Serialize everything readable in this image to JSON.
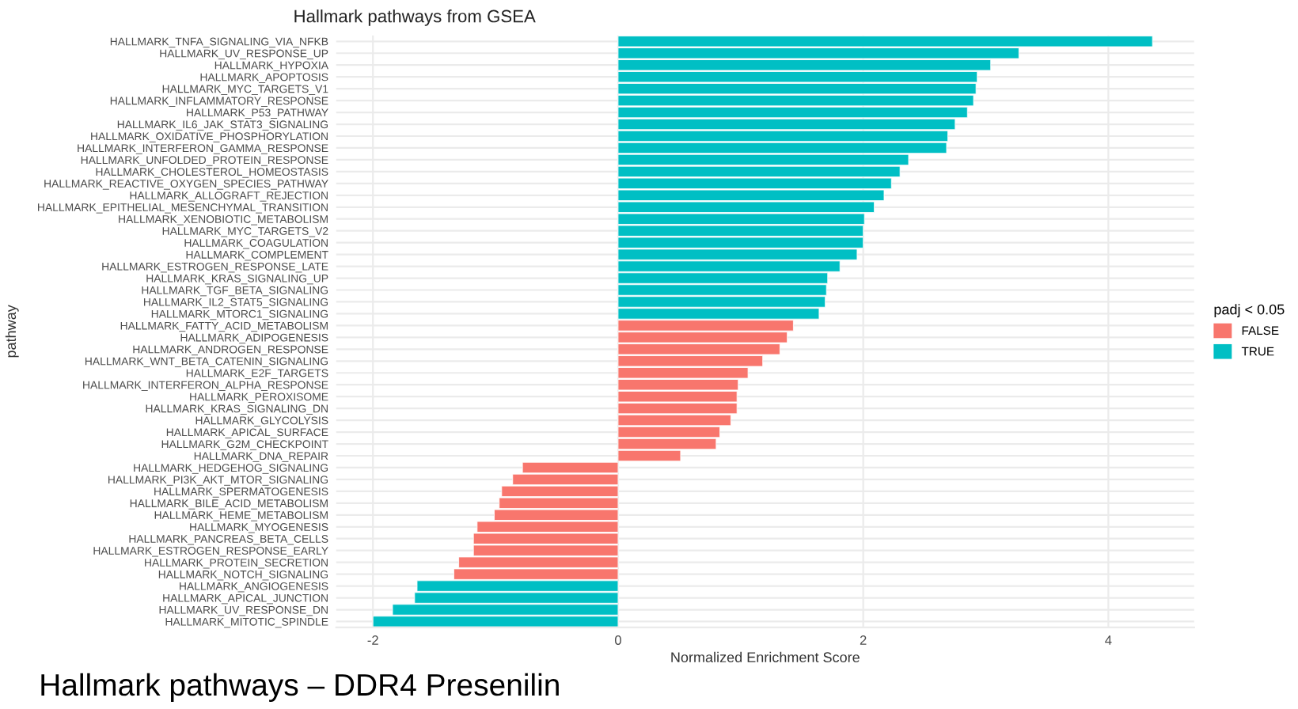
{
  "chart_data": {
    "type": "bar",
    "orientation": "horizontal",
    "title": "Hallmark pathways from GSEA",
    "xlabel": "Normalized Enrichment Score",
    "ylabel": "pathway",
    "legend_title": "padj < 0.05",
    "legend": "right",
    "grid": true,
    "categories": [
      "HALLMARK_TNFA_SIGNALING_VIA_NFKB",
      "HALLMARK_UV_RESPONSE_UP",
      "HALLMARK_HYPOXIA",
      "HALLMARK_APOPTOSIS",
      "HALLMARK_MYC_TARGETS_V1",
      "HALLMARK_INFLAMMATORY_RESPONSE",
      "HALLMARK_P53_PATHWAY",
      "HALLMARK_IL6_JAK_STAT3_SIGNALING",
      "HALLMARK_OXIDATIVE_PHOSPHORYLATION",
      "HALLMARK_INTERFERON_GAMMA_RESPONSE",
      "HALLMARK_UNFOLDED_PROTEIN_RESPONSE",
      "HALLMARK_CHOLESTEROL_HOMEOSTASIS",
      "HALLMARK_REACTIVE_OXYGEN_SPECIES_PATHWAY",
      "HALLMARK_ALLOGRAFT_REJECTION",
      "HALLMARK_EPITHELIAL_MESENCHYMAL_TRANSITION",
      "HALLMARK_XENOBIOTIC_METABOLISM",
      "HALLMARK_MYC_TARGETS_V2",
      "HALLMARK_COAGULATION",
      "HALLMARK_COMPLEMENT",
      "HALLMARK_ESTROGEN_RESPONSE_LATE",
      "HALLMARK_KRAS_SIGNALING_UP",
      "HALLMARK_TGF_BETA_SIGNALING",
      "HALLMARK_IL2_STAT5_SIGNALING",
      "HALLMARK_MTORC1_SIGNALING",
      "HALLMARK_FATTY_ACID_METABOLISM",
      "HALLMARK_ADIPOGENESIS",
      "HALLMARK_ANDROGEN_RESPONSE",
      "HALLMARK_WNT_BETA_CATENIN_SIGNALING",
      "HALLMARK_E2F_TARGETS",
      "HALLMARK_INTERFERON_ALPHA_RESPONSE",
      "HALLMARK_PEROXISOME",
      "HALLMARK_KRAS_SIGNALING_DN",
      "HALLMARK_GLYCOLYSIS",
      "HALLMARK_APICAL_SURFACE",
      "HALLMARK_G2M_CHECKPOINT",
      "HALLMARK_DNA_REPAIR",
      "HALLMARK_HEDGEHOG_SIGNALING",
      "HALLMARK_PI3K_AKT_MTOR_SIGNALING",
      "HALLMARK_SPERMATOGENESIS",
      "HALLMARK_BILE_ACID_METABOLISM",
      "HALLMARK_HEME_METABOLISM",
      "HALLMARK_MYOGENESIS",
      "HALLMARK_PANCREAS_BETA_CELLS",
      "HALLMARK_ESTROGEN_RESPONSE_EARLY",
      "HALLMARK_PROTEIN_SECRETION",
      "HALLMARK_NOTCH_SIGNALING",
      "HALLMARK_ANGIOGENESIS",
      "HALLMARK_APICAL_JUNCTION",
      "HALLMARK_UV_RESPONSE_DN",
      "HALLMARK_MITOTIC_SPINDLE"
    ],
    "series": [
      {
        "name": "FALSE",
        "color": "#f8766d",
        "values": [
          null,
          null,
          null,
          null,
          null,
          null,
          null,
          null,
          null,
          null,
          null,
          null,
          null,
          null,
          null,
          null,
          null,
          null,
          null,
          null,
          null,
          null,
          null,
          null,
          1.43,
          1.38,
          1.32,
          1.18,
          1.06,
          0.98,
          0.97,
          0.97,
          0.92,
          0.83,
          0.8,
          0.51,
          -0.78,
          -0.86,
          -0.95,
          -0.97,
          -1.01,
          -1.15,
          -1.18,
          -1.18,
          -1.3,
          -1.34,
          null,
          null,
          null,
          null
        ]
      },
      {
        "name": "TRUE",
        "color": "#00bfc4",
        "values": [
          4.36,
          3.27,
          3.04,
          2.93,
          2.92,
          2.9,
          2.85,
          2.75,
          2.69,
          2.68,
          2.37,
          2.3,
          2.23,
          2.17,
          2.09,
          2.01,
          2.0,
          2.0,
          1.95,
          1.81,
          1.71,
          1.7,
          1.69,
          1.64,
          null,
          null,
          null,
          null,
          null,
          null,
          null,
          null,
          null,
          null,
          null,
          null,
          null,
          null,
          null,
          null,
          null,
          null,
          null,
          null,
          null,
          null,
          -1.64,
          -1.66,
          -1.84,
          -2.0
        ]
      }
    ],
    "xlim": [
      -2.3,
      4.7
    ],
    "xticks": [
      -2,
      0,
      2,
      4
    ],
    "annotations": [
      "Hallmark pathways – DDR4 Presenilin"
    ]
  }
}
